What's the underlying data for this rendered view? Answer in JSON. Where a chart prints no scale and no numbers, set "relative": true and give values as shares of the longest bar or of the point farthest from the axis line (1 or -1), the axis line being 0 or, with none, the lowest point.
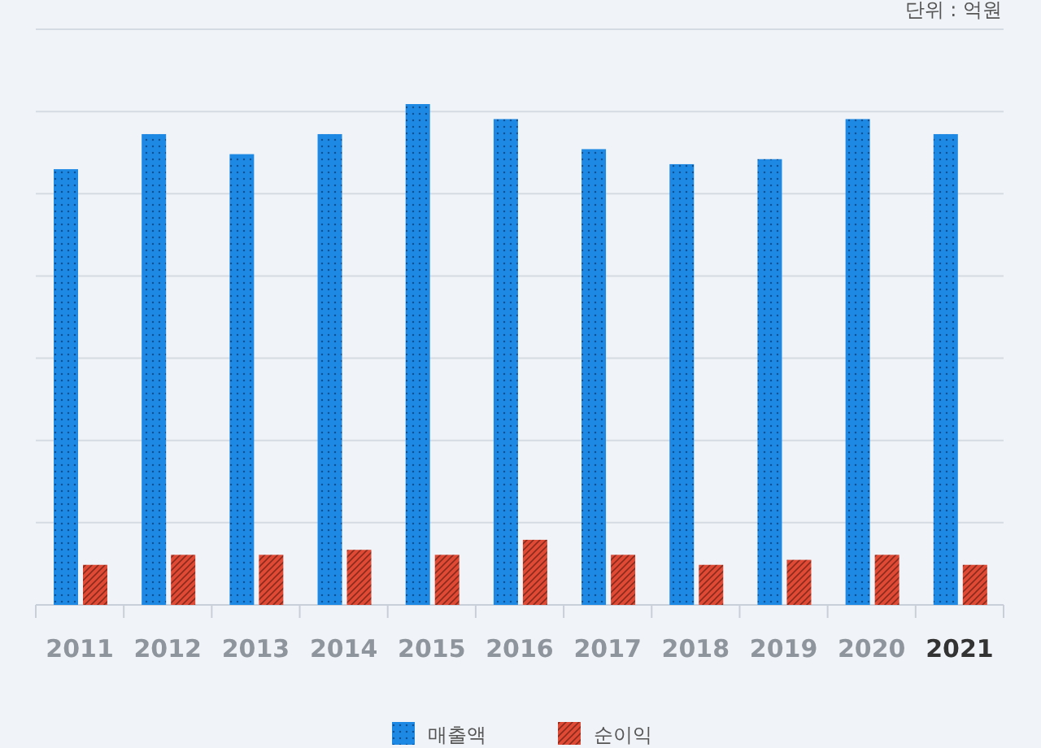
{
  "chart_data": {
    "type": "bar",
    "relative": true,
    "categories": [
      "2011",
      "2012",
      "2013",
      "2014",
      "2015",
      "2016",
      "2017",
      "2018",
      "2019",
      "2020",
      "2021"
    ],
    "series": [
      {
        "name": "매출액",
        "color": "#1e88e5",
        "values": [
          0.87,
          0.94,
          0.9,
          0.94,
          1,
          0.97,
          0.91,
          0.88,
          0.89,
          0.97,
          0.94
        ]
      },
      {
        "name": "순이익",
        "color": "#e04a35",
        "values": [
          0.08,
          0.1,
          0.1,
          0.11,
          0.1,
          0.13,
          0.1,
          0.08,
          0.09,
          0.1,
          0.08
        ]
      }
    ],
    "annotations": [
      "단위 : 억원"
    ],
    "grid": "y",
    "legend": "bottom"
  }
}
